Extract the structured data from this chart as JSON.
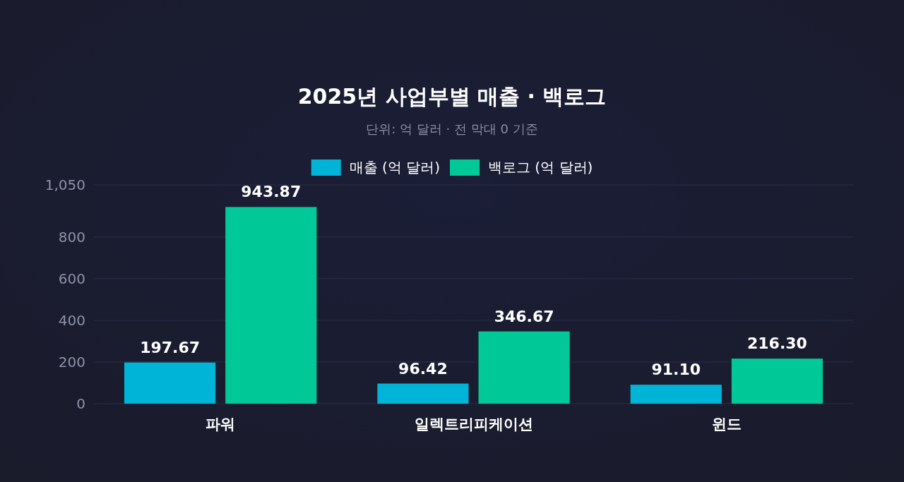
{
  "chart_data": {
    "type": "bar",
    "title": "2025년 사업부별 매출 · 백로그",
    "subtitle": "단위: 억 달러 · 전 막대 0 기준",
    "categories": [
      "파워",
      "일렉트리피케이션",
      "윈드"
    ],
    "series": [
      {
        "name": "매출 (억 달러)",
        "color": "#00b4d8",
        "values": [
          197.67,
          96.42,
          91.1
        ]
      },
      {
        "name": "백로그 (억 달러)",
        "color": "#00c896",
        "values": [
          943.87,
          346.67,
          216.3
        ]
      }
    ],
    "value_labels": [
      [
        "197.67",
        "96.42",
        "91.10"
      ],
      [
        "943.87",
        "346.67",
        "216.30"
      ]
    ],
    "ylim": [
      0,
      1050
    ],
    "yticks": [
      0,
      200,
      400,
      600,
      800,
      {
        "value": 1050,
        "label": "1,050"
      }
    ],
    "grid": "y",
    "legend": "top"
  }
}
